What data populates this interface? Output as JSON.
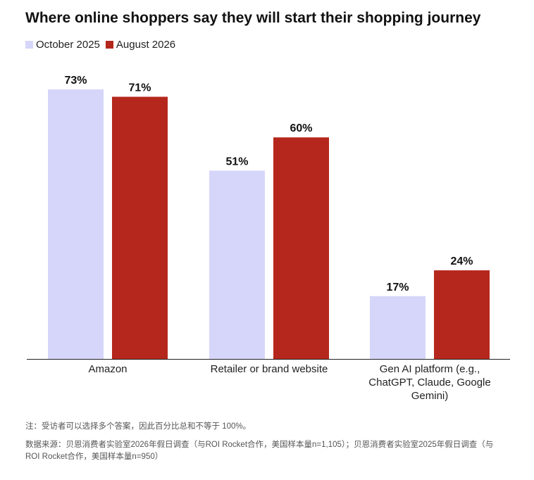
{
  "colors": {
    "series1": "#d6d6fa",
    "series2": "#b5271c",
    "axis": "#222222"
  },
  "chart_data": {
    "type": "bar",
    "title": "Where online shoppers say they will start their shopping journey",
    "categories": [
      [
        "Amazon"
      ],
      [
        "Retailer or brand website"
      ],
      [
        "Gen AI platform (e.g.,",
        "ChatGPT, Claude, Google",
        "Gemini)"
      ]
    ],
    "series": [
      {
        "name": "October 2025",
        "values": [
          73,
          51,
          17
        ],
        "labels": [
          "73%",
          "51%",
          "17%"
        ]
      },
      {
        "name": "August 2026",
        "values": [
          71,
          60,
          24
        ],
        "labels": [
          "71%",
          "60%",
          "24%"
        ]
      }
    ],
    "ylim": [
      0,
      73
    ],
    "legend": "top-left",
    "grid": false
  },
  "footer": {
    "note": "注：受访者可以选择多个答案，因此百分比总和不等于 100%。",
    "source": "数据来源：贝恩消费者实验室2026年假日调查（与ROI Rocket合作，美国样本量n=1,105）；贝恩消费者实验室2025年假日调查（与ROI Rocket合作，美国样本量n=950）"
  }
}
